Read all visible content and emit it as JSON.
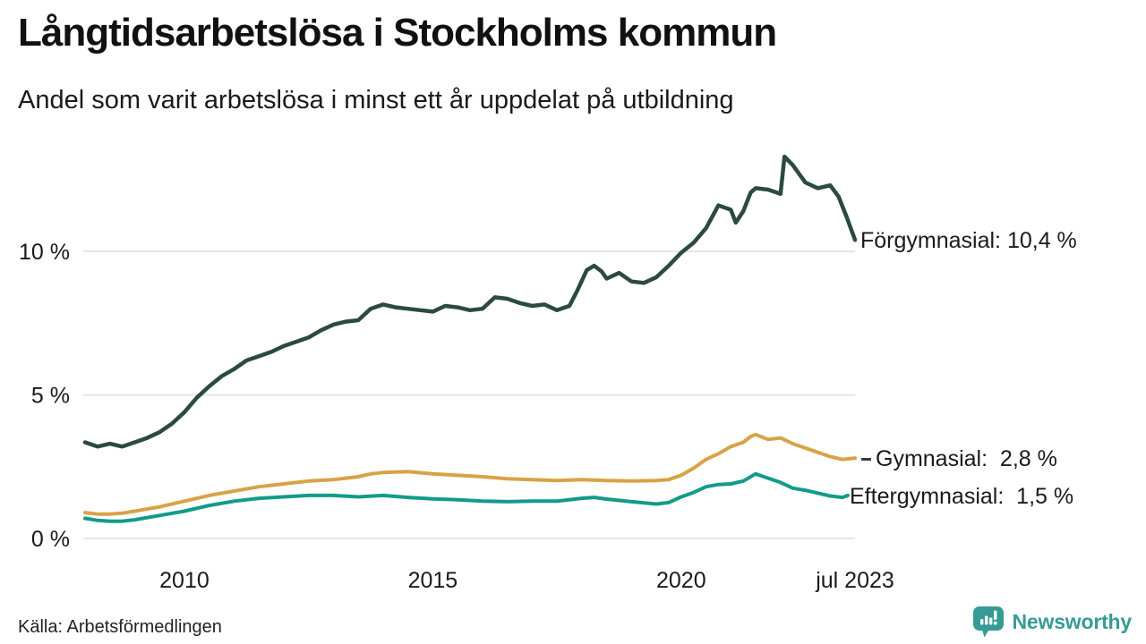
{
  "colors": {
    "background": "#ffffff",
    "text": "#1a1a1a",
    "gridline": "#e6e6e6",
    "forgymnasial_line": "#2a4a42",
    "gymnasial_line": "#d8a246",
    "eftergymnasial_line": "#129b88",
    "brand_teal": "#379b95"
  },
  "footer": {
    "source": "Källa: Arbetsförmedlingen",
    "brand": "Newsworthy"
  },
  "chart_data": {
    "type": "line",
    "title": "Långtidsarbetslösa i Stockholms kommun",
    "subtitle": "Andel som varit arbetslösa i minst ett år uppdelat på utbildning",
    "unit": "%",
    "grid": "horizontal-only",
    "legend_position": "end-of-line-labels",
    "x_axis": {
      "range_years": [
        2008.0,
        2023.5
      ],
      "ticks": [
        {
          "label": "2010",
          "year": 2010
        },
        {
          "label": "2015",
          "year": 2015
        },
        {
          "label": "2020",
          "year": 2020
        },
        {
          "label": "jul 2023",
          "year": 2023.5
        }
      ]
    },
    "y_axis": {
      "range": [
        0,
        13.8
      ],
      "ticks": [
        {
          "label": "0 %",
          "value": 0
        },
        {
          "label": "5 %",
          "value": 5
        },
        {
          "label": "10 %",
          "value": 10
        }
      ]
    },
    "series": [
      {
        "id": "forgymnasial",
        "name": "Förgymnasial",
        "end_label": "Förgymnasial: 10,4 %",
        "end_value": "10,4 %",
        "color": "#2a4a42",
        "width": 4.5,
        "points": [
          [
            2008.0,
            3.35
          ],
          [
            2008.25,
            3.2
          ],
          [
            2008.5,
            3.3
          ],
          [
            2008.75,
            3.2
          ],
          [
            2009.0,
            3.35
          ],
          [
            2009.25,
            3.5
          ],
          [
            2009.5,
            3.7
          ],
          [
            2009.75,
            4.0
          ],
          [
            2010.0,
            4.4
          ],
          [
            2010.25,
            4.9
          ],
          [
            2010.5,
            5.3
          ],
          [
            2010.75,
            5.65
          ],
          [
            2011.0,
            5.9
          ],
          [
            2011.25,
            6.2
          ],
          [
            2011.5,
            6.35
          ],
          [
            2011.75,
            6.5
          ],
          [
            2012.0,
            6.7
          ],
          [
            2012.25,
            6.85
          ],
          [
            2012.5,
            7.0
          ],
          [
            2012.75,
            7.25
          ],
          [
            2013.0,
            7.45
          ],
          [
            2013.25,
            7.55
          ],
          [
            2013.5,
            7.6
          ],
          [
            2013.75,
            8.0
          ],
          [
            2014.0,
            8.15
          ],
          [
            2014.25,
            8.05
          ],
          [
            2014.5,
            8.0
          ],
          [
            2014.75,
            7.95
          ],
          [
            2015.0,
            7.9
          ],
          [
            2015.25,
            8.1
          ],
          [
            2015.5,
            8.05
          ],
          [
            2015.75,
            7.95
          ],
          [
            2016.0,
            8.0
          ],
          [
            2016.25,
            8.4
          ],
          [
            2016.5,
            8.35
          ],
          [
            2016.75,
            8.2
          ],
          [
            2017.0,
            8.1
          ],
          [
            2017.25,
            8.15
          ],
          [
            2017.5,
            7.95
          ],
          [
            2017.75,
            8.1
          ],
          [
            2017.9,
            8.6
          ],
          [
            2018.1,
            9.35
          ],
          [
            2018.25,
            9.5
          ],
          [
            2018.4,
            9.3
          ],
          [
            2018.5,
            9.05
          ],
          [
            2018.75,
            9.25
          ],
          [
            2019.0,
            8.95
          ],
          [
            2019.25,
            8.9
          ],
          [
            2019.5,
            9.1
          ],
          [
            2019.75,
            9.5
          ],
          [
            2020.0,
            9.95
          ],
          [
            2020.25,
            10.3
          ],
          [
            2020.5,
            10.8
          ],
          [
            2020.75,
            11.6
          ],
          [
            2021.0,
            11.45
          ],
          [
            2021.1,
            11.0
          ],
          [
            2021.25,
            11.4
          ],
          [
            2021.4,
            12.05
          ],
          [
            2021.5,
            12.2
          ],
          [
            2021.75,
            12.15
          ],
          [
            2022.0,
            12.0
          ],
          [
            2022.08,
            13.3
          ],
          [
            2022.25,
            13.0
          ],
          [
            2022.5,
            12.4
          ],
          [
            2022.75,
            12.2
          ],
          [
            2023.0,
            12.3
          ],
          [
            2023.17,
            11.9
          ],
          [
            2023.33,
            11.2
          ],
          [
            2023.5,
            10.4
          ]
        ]
      },
      {
        "id": "gymnasial",
        "name": "Gymnasial",
        "end_label": "Gymnasial:  2,8 %",
        "end_value": "2,8 %",
        "color": "#d8a246",
        "width": 4,
        "points": [
          [
            2008.0,
            0.9
          ],
          [
            2008.25,
            0.85
          ],
          [
            2008.5,
            0.85
          ],
          [
            2008.75,
            0.88
          ],
          [
            2009.0,
            0.95
          ],
          [
            2009.5,
            1.1
          ],
          [
            2010.0,
            1.3
          ],
          [
            2010.5,
            1.5
          ],
          [
            2011.0,
            1.65
          ],
          [
            2011.5,
            1.8
          ],
          [
            2012.0,
            1.9
          ],
          [
            2012.5,
            2.0
          ],
          [
            2013.0,
            2.05
          ],
          [
            2013.5,
            2.15
          ],
          [
            2013.75,
            2.25
          ],
          [
            2014.0,
            2.3
          ],
          [
            2014.5,
            2.33
          ],
          [
            2015.0,
            2.25
          ],
          [
            2015.5,
            2.2
          ],
          [
            2016.0,
            2.15
          ],
          [
            2016.5,
            2.08
          ],
          [
            2017.0,
            2.05
          ],
          [
            2017.5,
            2.02
          ],
          [
            2018.0,
            2.05
          ],
          [
            2018.5,
            2.02
          ],
          [
            2019.0,
            2.0
          ],
          [
            2019.5,
            2.02
          ],
          [
            2019.75,
            2.05
          ],
          [
            2020.0,
            2.2
          ],
          [
            2020.25,
            2.45
          ],
          [
            2020.5,
            2.75
          ],
          [
            2020.75,
            2.95
          ],
          [
            2021.0,
            3.2
          ],
          [
            2021.25,
            3.35
          ],
          [
            2021.4,
            3.55
          ],
          [
            2021.5,
            3.62
          ],
          [
            2021.6,
            3.55
          ],
          [
            2021.75,
            3.45
          ],
          [
            2022.0,
            3.5
          ],
          [
            2022.1,
            3.42
          ],
          [
            2022.25,
            3.3
          ],
          [
            2022.5,
            3.15
          ],
          [
            2022.75,
            3.0
          ],
          [
            2023.0,
            2.85
          ],
          [
            2023.25,
            2.75
          ],
          [
            2023.5,
            2.8
          ]
        ]
      },
      {
        "id": "eftergymnasial",
        "name": "Eftergymnasial",
        "end_label": "Eftergymnasial:  1,5 %",
        "end_value": "1,5 %",
        "color": "#129b88",
        "width": 4,
        "points": [
          [
            2008.0,
            0.7
          ],
          [
            2008.25,
            0.63
          ],
          [
            2008.5,
            0.6
          ],
          [
            2008.75,
            0.6
          ],
          [
            2009.0,
            0.65
          ],
          [
            2009.5,
            0.8
          ],
          [
            2010.0,
            0.95
          ],
          [
            2010.5,
            1.15
          ],
          [
            2011.0,
            1.3
          ],
          [
            2011.5,
            1.4
          ],
          [
            2012.0,
            1.45
          ],
          [
            2012.5,
            1.5
          ],
          [
            2013.0,
            1.5
          ],
          [
            2013.5,
            1.45
          ],
          [
            2014.0,
            1.5
          ],
          [
            2014.5,
            1.43
          ],
          [
            2015.0,
            1.38
          ],
          [
            2015.5,
            1.35
          ],
          [
            2016.0,
            1.3
          ],
          [
            2016.5,
            1.28
          ],
          [
            2017.0,
            1.3
          ],
          [
            2017.5,
            1.3
          ],
          [
            2018.0,
            1.4
          ],
          [
            2018.25,
            1.43
          ],
          [
            2018.5,
            1.37
          ],
          [
            2019.0,
            1.28
          ],
          [
            2019.5,
            1.2
          ],
          [
            2019.75,
            1.25
          ],
          [
            2020.0,
            1.45
          ],
          [
            2020.25,
            1.6
          ],
          [
            2020.5,
            1.8
          ],
          [
            2020.75,
            1.88
          ],
          [
            2021.0,
            1.9
          ],
          [
            2021.25,
            2.0
          ],
          [
            2021.5,
            2.25
          ],
          [
            2021.75,
            2.1
          ],
          [
            2022.0,
            1.95
          ],
          [
            2022.25,
            1.75
          ],
          [
            2022.5,
            1.68
          ],
          [
            2022.75,
            1.58
          ],
          [
            2023.0,
            1.48
          ],
          [
            2023.25,
            1.43
          ],
          [
            2023.5,
            1.5
          ]
        ]
      }
    ]
  }
}
